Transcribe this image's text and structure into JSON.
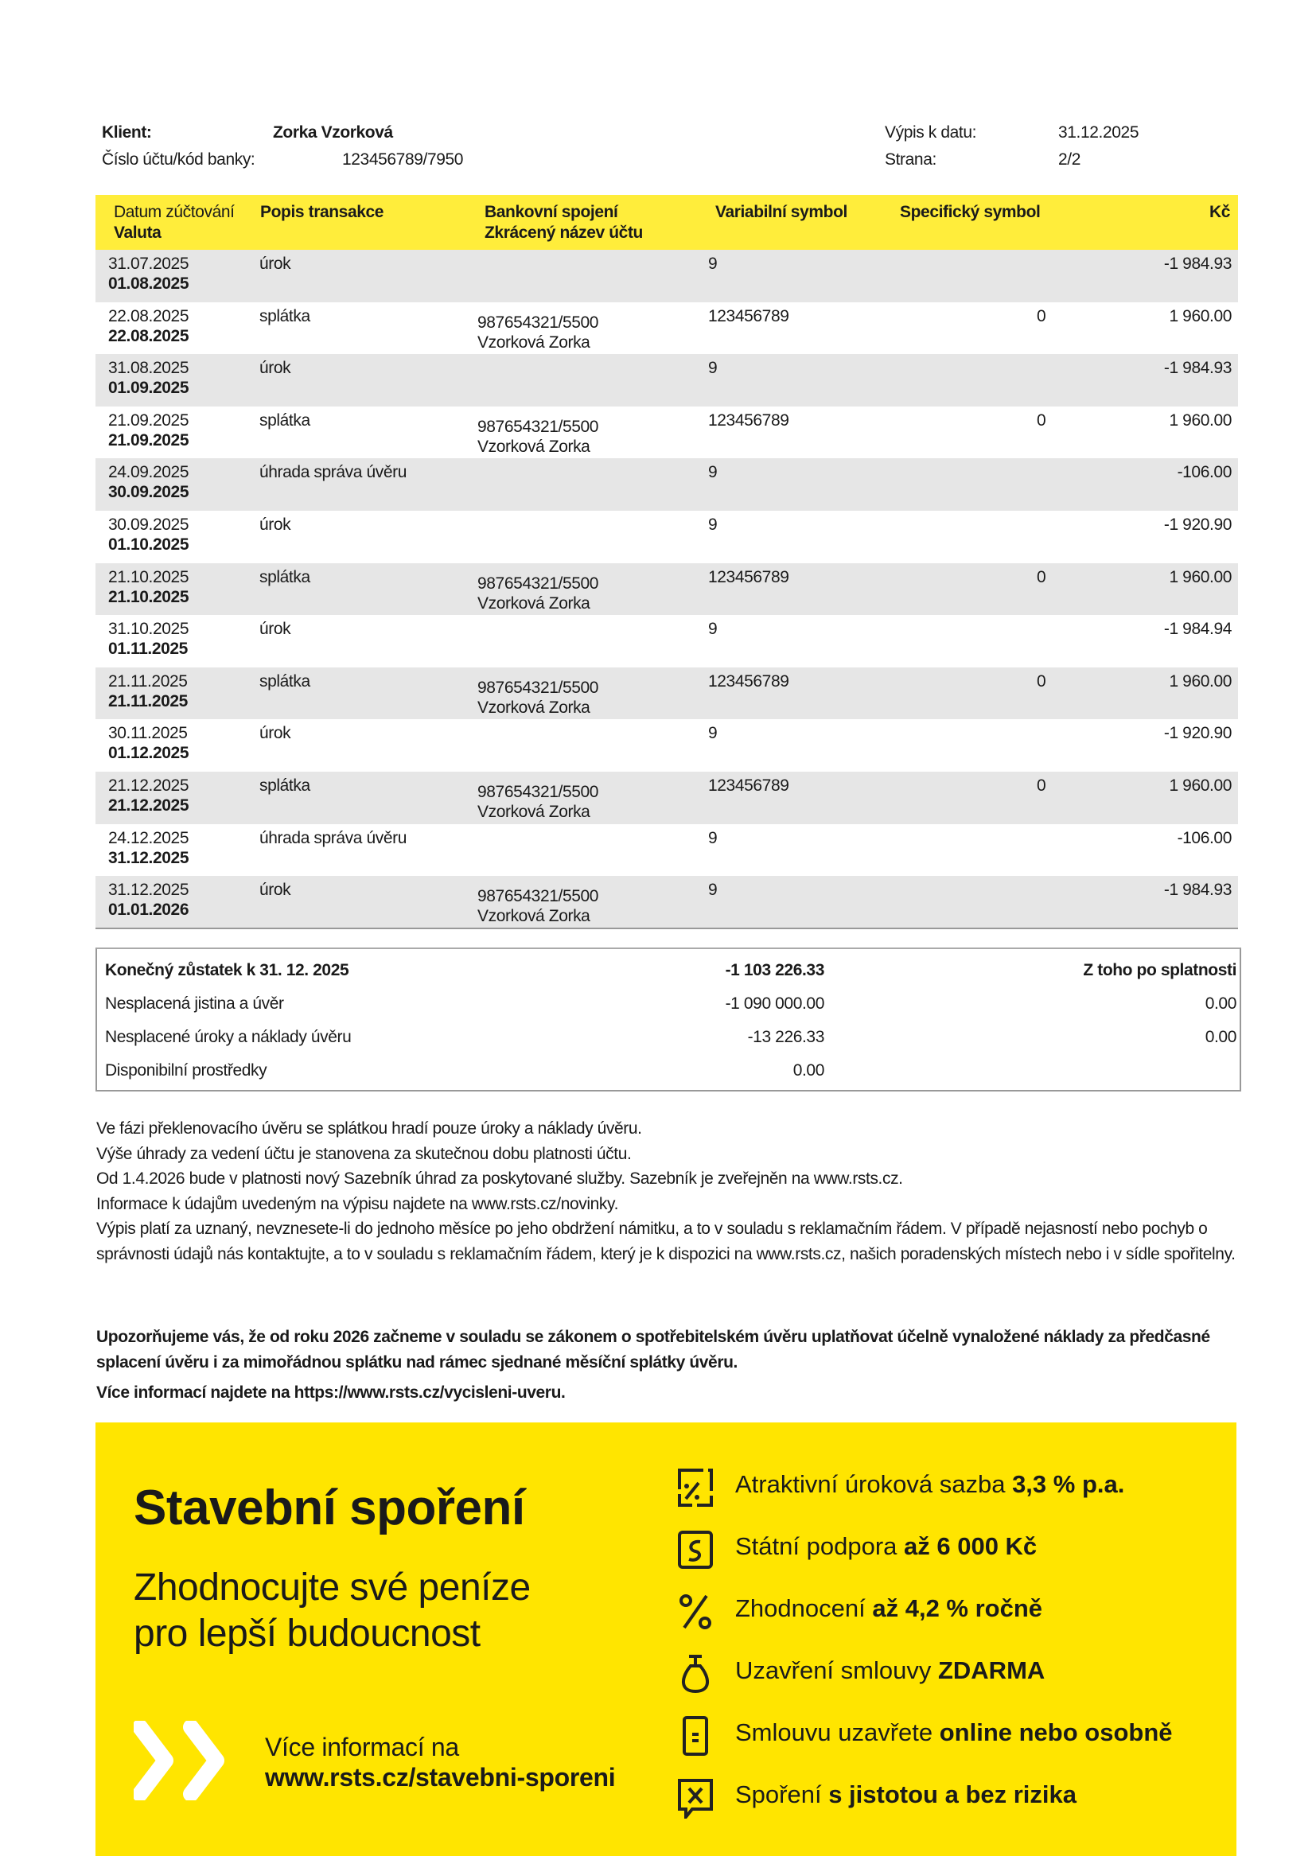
{
  "header": {
    "client_label": "Klient:",
    "client_name": "Zorka Vzorková",
    "account_label": "Číslo účtu/kód banky:",
    "account_value": "123456789/7950",
    "statement_date_label": "Výpis k datu:",
    "statement_date": "31.12.2025",
    "page_label": "Strana:",
    "page_value": "2/2"
  },
  "table": {
    "columns": {
      "date": "Datum zúčtování",
      "valuta": "Valuta",
      "desc": "Popis transakce",
      "bank": "Bankovní spojení",
      "bank_name": "Zkrácený název účtu",
      "var": "Variabilní symbol",
      "spec": "Specifický symbol",
      "amount": "Kč"
    },
    "rows": [
      {
        "date": "31.07.2025",
        "valuta": "01.08.2025",
        "desc": "úrok",
        "bank": "",
        "name": "",
        "var": "9",
        "spec": "",
        "amount": "-1 984.93"
      },
      {
        "date": "22.08.2025",
        "valuta": "22.08.2025",
        "desc": "splátka",
        "bank": "987654321/5500",
        "name": "Vzorková Zorka",
        "var": "123456789",
        "spec": "0",
        "amount": "1 960.00"
      },
      {
        "date": "31.08.2025",
        "valuta": "01.09.2025",
        "desc": "úrok",
        "bank": "",
        "name": "",
        "var": "9",
        "spec": "",
        "amount": "-1 984.93"
      },
      {
        "date": "21.09.2025",
        "valuta": "21.09.2025",
        "desc": "splátka",
        "bank": "987654321/5500",
        "name": "Vzorková Zorka",
        "var": "123456789",
        "spec": "0",
        "amount": "1 960.00"
      },
      {
        "date": "24.09.2025",
        "valuta": "30.09.2025",
        "desc": "úhrada správa úvěru",
        "bank": "",
        "name": "",
        "var": "9",
        "spec": "",
        "amount": "-106.00"
      },
      {
        "date": "30.09.2025",
        "valuta": "01.10.2025",
        "desc": "úrok",
        "bank": "",
        "name": "",
        "var": "9",
        "spec": "",
        "amount": "-1 920.90"
      },
      {
        "date": "21.10.2025",
        "valuta": "21.10.2025",
        "desc": "splátka",
        "bank": "987654321/5500",
        "name": "Vzorková Zorka",
        "var": "123456789",
        "spec": "0",
        "amount": "1 960.00"
      },
      {
        "date": "31.10.2025",
        "valuta": "01.11.2025",
        "desc": "úrok",
        "bank": "",
        "name": "",
        "var": "9",
        "spec": "",
        "amount": "-1 984.94"
      },
      {
        "date": "21.11.2025",
        "valuta": "21.11.2025",
        "desc": "splátka",
        "bank": "987654321/5500",
        "name": "Vzorková Zorka",
        "var": "123456789",
        "spec": "0",
        "amount": "1 960.00"
      },
      {
        "date": "30.11.2025",
        "valuta": "01.12.2025",
        "desc": "úrok",
        "bank": "",
        "name": "",
        "var": "9",
        "spec": "",
        "amount": "-1 920.90"
      },
      {
        "date": "21.12.2025",
        "valuta": "21.12.2025",
        "desc": "splátka",
        "bank": "987654321/5500",
        "name": "Vzorková Zorka",
        "var": "123456789",
        "spec": "0",
        "amount": "1 960.00"
      },
      {
        "date": "24.12.2025",
        "valuta": "31.12.2025",
        "desc": "úhrada správa úvěru",
        "bank": "",
        "name": "",
        "var": "9",
        "spec": "",
        "amount": "-106.00"
      },
      {
        "date": "31.12.2025",
        "valuta": "01.01.2026",
        "desc": "úrok",
        "bank": "987654321/5500",
        "name": "Vzorková Zorka",
        "var": "9",
        "spec": "",
        "amount": "-1 984.93"
      }
    ]
  },
  "summary": {
    "final_label": "Konečný zůstatek k 31. 12. 2025",
    "final_value": "-1 103 226.33",
    "overdue_label": "Z toho po splatnosti",
    "lines": [
      {
        "label": "Nesplacená jistina a úvěr",
        "value": "-1 090 000.00",
        "overdue": "0.00"
      },
      {
        "label": "Nesplacené úroky a náklady úvěru",
        "value": "-13 226.33",
        "overdue": "0.00"
      },
      {
        "label": "Disponibilní prostředky",
        "value": "0.00",
        "overdue": ""
      }
    ]
  },
  "notes": [
    "Ve fázi překlenovacího úvěru se splátkou hradí pouze úroky a náklady úvěru.",
    "Výše úhrady za vedení účtu je stanovena za skutečnou dobu platnosti účtu.",
    "Od 1.4.2026 bude v platnosti nový Sazebník úhrad za poskytované služby. Sazebník je zveřejněn na www.rsts.cz.",
    "Informace k údajům uvedeným na výpisu najdete na www.rsts.cz/novinky.",
    "Výpis platí za uznaný, nevznesete-li do jednoho měsíce po jeho obdržení námitku, a to v souladu s reklamačním řádem. V případě nejasností nebo pochyb o správnosti údajů nás kontaktujte, a to v souladu s reklamačním řádem, který je k dispozici na www.rsts.cz, našich poradenských místech nebo i v sídle spořitelny."
  ],
  "warning": "Upozorňujeme vás, že od roku 2026 začneme v souladu se zákonem o spotřebitelském úvěru uplatňovat účelně vynaložené náklady za předčasné splacení úvěru i za mimořádnou splátku nad rámec sjednané měsíční splátky úvěru.",
  "more_info": "Více informací najdete na https://www.rsts.cz/vycisleni-uveru.",
  "banner": {
    "bg": "#ffe500",
    "title": "Stavební spoření",
    "subtitle1": "Zhodnocujte své peníze",
    "subtitle2": "pro lepší budoucnost",
    "more_label": "Více informací na",
    "more_url": "www.rsts.cz/stavebni-sporeni",
    "features": [
      {
        "icon": "percent-tag-icon",
        "text": "Atraktivní úroková sazba ",
        "bold": "3,3 % p.a."
      },
      {
        "icon": "state-support-icon",
        "text": "Státní podpora ",
        "bold": "až 6 000 Kč"
      },
      {
        "icon": "percent-icon",
        "text": "Zhodnocení ",
        "bold": "až 4,2 % ročně"
      },
      {
        "icon": "money-bag-icon",
        "text": "Uzavření smlouvy ",
        "bold": "ZDARMA"
      },
      {
        "icon": "mobile-icon",
        "text": "Smlouvu uzavřete ",
        "bold": "online nebo osobně"
      },
      {
        "icon": "shield-check-icon",
        "text": "Spoření ",
        "bold": "s jistotou a bez rizika"
      }
    ]
  }
}
